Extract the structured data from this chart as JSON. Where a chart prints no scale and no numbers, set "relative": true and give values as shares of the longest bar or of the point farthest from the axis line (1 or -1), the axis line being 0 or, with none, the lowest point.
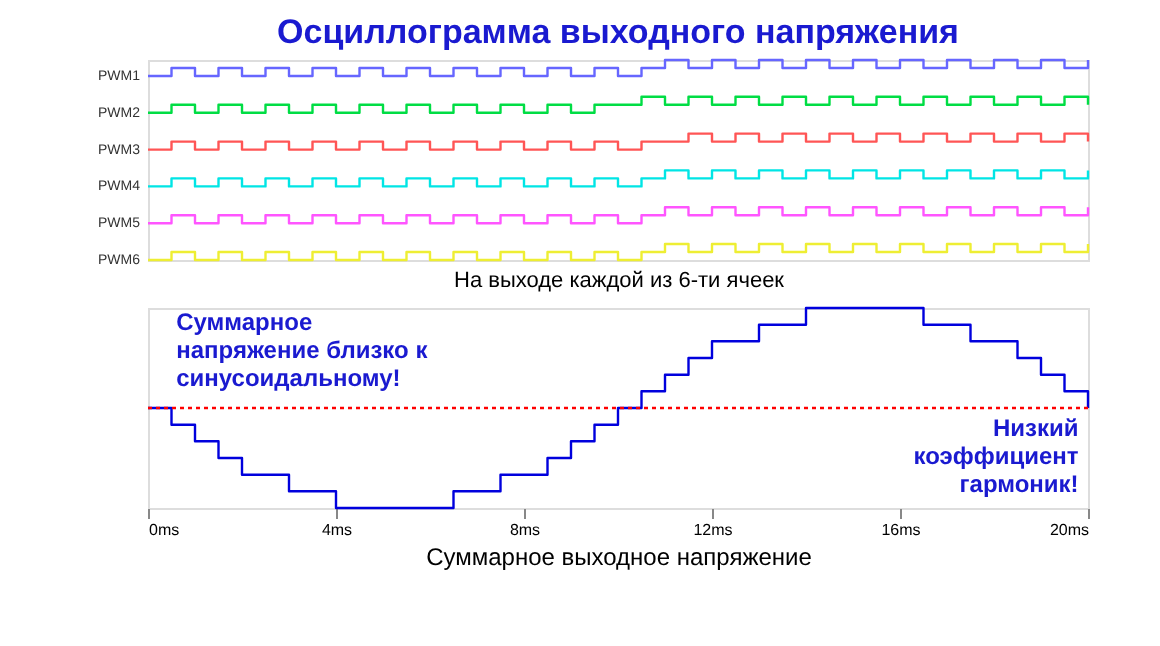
{
  "chart_data": [
    {
      "type": "step",
      "title": "Осциллограмма выходного напряжения",
      "xlabel": "На выходе каждой из 6-ти ячеек",
      "relative": true,
      "tick_labels": false,
      "grid": false,
      "legend": false,
      "xlim": [
        0,
        20
      ],
      "x": [
        0,
        0.5,
        1,
        1.5,
        2,
        2.5,
        3,
        3.5,
        4,
        4.5,
        5,
        5.5,
        6,
        6.5,
        7,
        7.5,
        8,
        8.5,
        9,
        9.5,
        10,
        10.5,
        11,
        11.5,
        12,
        12.5,
        13,
        13.5,
        14,
        14.5,
        15,
        15.5,
        16,
        16.5,
        17,
        17.5,
        18,
        18.5,
        19,
        19.5,
        20
      ],
      "series": [
        {
          "name": "PWM1",
          "color": "#6666ff",
          "values": [
            0.92,
            0.96,
            0.92,
            0.96,
            0.92,
            0.96,
            0.92,
            0.96,
            0.92,
            0.96,
            0.92,
            0.96,
            0.92,
            0.96,
            0.92,
            0.96,
            0.92,
            0.96,
            0.92,
            0.96,
            0.92,
            0.96,
            1.0,
            0.96,
            1.0,
            0.96,
            1.0,
            0.96,
            1.0,
            0.96,
            1.0,
            0.96,
            1.0,
            0.96,
            1.0,
            0.96,
            1.0,
            0.96,
            1.0,
            0.96,
            1.0
          ]
        },
        {
          "name": "PWM2",
          "color": "#00dd44",
          "values": [
            0.736,
            0.776,
            0.736,
            0.776,
            0.736,
            0.776,
            0.736,
            0.776,
            0.736,
            0.776,
            0.736,
            0.776,
            0.736,
            0.776,
            0.736,
            0.776,
            0.736,
            0.776,
            0.736,
            0.776,
            0.776,
            0.816,
            0.776,
            0.816,
            0.776,
            0.816,
            0.776,
            0.816,
            0.776,
            0.816,
            0.776,
            0.816,
            0.776,
            0.816,
            0.776,
            0.816,
            0.776,
            0.816,
            0.776,
            0.816,
            0.776
          ]
        },
        {
          "name": "PWM3",
          "color": "#ff5555",
          "values": [
            0.552,
            0.592,
            0.552,
            0.592,
            0.552,
            0.592,
            0.552,
            0.592,
            0.552,
            0.592,
            0.552,
            0.592,
            0.552,
            0.592,
            0.552,
            0.592,
            0.552,
            0.592,
            0.552,
            0.592,
            0.552,
            0.592,
            0.592,
            0.632,
            0.592,
            0.632,
            0.592,
            0.632,
            0.592,
            0.632,
            0.592,
            0.632,
            0.592,
            0.632,
            0.592,
            0.632,
            0.592,
            0.632,
            0.592,
            0.632,
            0.592
          ]
        },
        {
          "name": "PWM4",
          "color": "#00e5e5",
          "values": [
            0.368,
            0.408,
            0.368,
            0.408,
            0.368,
            0.408,
            0.368,
            0.408,
            0.368,
            0.408,
            0.368,
            0.408,
            0.368,
            0.408,
            0.368,
            0.408,
            0.368,
            0.408,
            0.368,
            0.408,
            0.368,
            0.408,
            0.448,
            0.408,
            0.448,
            0.408,
            0.448,
            0.408,
            0.448,
            0.408,
            0.448,
            0.408,
            0.448,
            0.408,
            0.448,
            0.408,
            0.448,
            0.408,
            0.448,
            0.408,
            0.448
          ]
        },
        {
          "name": "PWM5",
          "color": "#ff55ff",
          "values": [
            0.184,
            0.224,
            0.184,
            0.224,
            0.184,
            0.224,
            0.184,
            0.224,
            0.184,
            0.224,
            0.184,
            0.224,
            0.184,
            0.224,
            0.184,
            0.224,
            0.184,
            0.224,
            0.184,
            0.224,
            0.184,
            0.224,
            0.264,
            0.224,
            0.264,
            0.224,
            0.264,
            0.224,
            0.264,
            0.224,
            0.264,
            0.224,
            0.264,
            0.224,
            0.264,
            0.224,
            0.264,
            0.224,
            0.264,
            0.224,
            0.264
          ]
        },
        {
          "name": "PWM6",
          "color": "#eeee33",
          "values": [
            0,
            0.04,
            0,
            0.04,
            0,
            0.04,
            0,
            0.04,
            0,
            0.04,
            0,
            0.04,
            0,
            0.04,
            0,
            0.04,
            0,
            0.04,
            0,
            0.04,
            0,
            0.04,
            0.08,
            0.04,
            0.08,
            0.04,
            0.08,
            0.04,
            0.08,
            0.04,
            0.08,
            0.04,
            0.08,
            0.04,
            0.08,
            0.04,
            0.08,
            0.04,
            0.08,
            0.04,
            0.08
          ]
        }
      ]
    },
    {
      "type": "step",
      "xlabel": "Суммарное выходное напряжение",
      "relative": true,
      "grid": false,
      "legend": false,
      "xlim": [
        0,
        20
      ],
      "xticks": [
        {
          "value": 0,
          "label": "0ms"
        },
        {
          "value": 4,
          "label": "4ms"
        },
        {
          "value": 8,
          "label": "8ms"
        },
        {
          "value": 12,
          "label": "12ms"
        },
        {
          "value": 16,
          "label": "16ms"
        },
        {
          "value": 20,
          "label": "20ms"
        }
      ],
      "x": [
        0,
        0.5,
        1,
        1.5,
        2,
        2.5,
        3,
        3.5,
        4,
        4.5,
        5,
        5.5,
        6,
        6.5,
        7,
        7.5,
        8,
        8.5,
        9,
        9.5,
        10,
        10.5,
        11,
        11.5,
        12,
        12.5,
        13,
        13.5,
        14,
        14.5,
        15,
        15.5,
        16,
        16.5,
        17,
        17.5,
        18,
        18.5,
        19,
        19.5,
        20
      ],
      "series": [
        {
          "color": "#0000dd",
          "values": [
            0,
            -0.167,
            -0.333,
            -0.5,
            -0.667,
            -0.667,
            -0.833,
            -0.833,
            -1,
            -1,
            -1,
            -1,
            -1,
            -0.833,
            -0.833,
            -0.667,
            -0.667,
            -0.5,
            -0.333,
            -0.167,
            0,
            0.167,
            0.333,
            0.5,
            0.667,
            0.667,
            0.833,
            0.833,
            1,
            1,
            1,
            1,
            1,
            0.833,
            0.833,
            0.667,
            0.667,
            0.5,
            0.333,
            0.167,
            0
          ]
        }
      ],
      "ref_lines": [
        {
          "axis": "y",
          "value": 0,
          "color": "#ff0000",
          "line_style": "dotted"
        }
      ],
      "annotations": [
        "Суммарное\nнапряжение близко к\nсинусоидальному!",
        "Низкий\nкоэффициент\nгармоник!"
      ]
    }
  ]
}
